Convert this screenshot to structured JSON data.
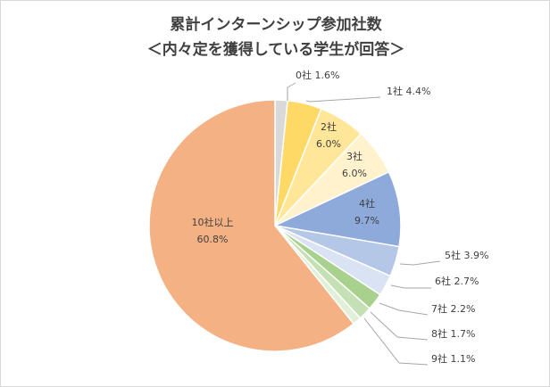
{
  "chart_data": {
    "type": "pie",
    "title": "累計インターンシップ参加社数",
    "subtitle": "＜内々定を獲得している学生が回答＞",
    "categories": [
      "0社",
      "1社",
      "2社",
      "3社",
      "4社",
      "5社",
      "6社",
      "7社",
      "8社",
      "9社",
      "10社以上"
    ],
    "values": [
      1.6,
      4.4,
      6.0,
      6.0,
      9.7,
      3.9,
      2.7,
      2.2,
      1.7,
      1.1,
      60.8
    ],
    "value_labels": [
      "1.6%",
      "4.4%",
      "6.0%",
      "6.0%",
      "9.7%",
      "3.9%",
      "2.7%",
      "2.2%",
      "1.7%",
      "1.1%",
      "60.8%"
    ],
    "colors": [
      "#d9d9d9",
      "#ffd966",
      "#ffe699",
      "#fff2cc",
      "#8eaadb",
      "#b4c7e7",
      "#dae3f3",
      "#a9d18e",
      "#c5e0b4",
      "#e2f0d9",
      "#f4b183"
    ],
    "legend": "none",
    "label_style": [
      "outside",
      "outside",
      "inside-stacked",
      "inside-stacked",
      "inside-stacked",
      "outside",
      "outside",
      "outside",
      "outside",
      "outside",
      "inside-stacked"
    ]
  }
}
